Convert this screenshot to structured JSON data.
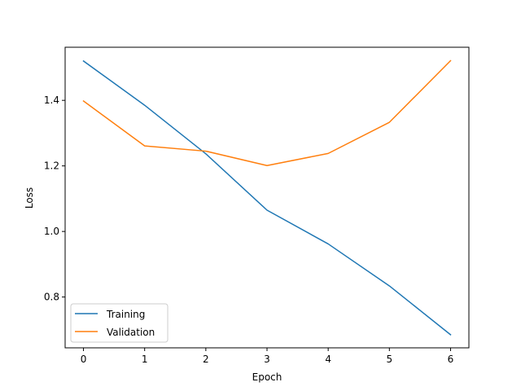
{
  "chart_data": {
    "type": "line",
    "title": "",
    "xlabel": "Epoch",
    "ylabel": "Loss",
    "x": [
      0,
      1,
      2,
      3,
      4,
      5,
      6
    ],
    "xticks": [
      "0",
      "1",
      "2",
      "3",
      "4",
      "5",
      "6"
    ],
    "yticks": [
      "0.8",
      "1.0",
      "1.2",
      "1.4"
    ],
    "ytick_values": [
      0.8,
      1.0,
      1.2,
      1.4
    ],
    "xlim": [
      -0.3,
      6.3
    ],
    "ylim": [
      0.645,
      1.562
    ],
    "grid": false,
    "legend_position": "lower-left",
    "series": [
      {
        "name": "Training",
        "color": "#1f77b4",
        "values": [
          1.52,
          1.385,
          1.237,
          1.065,
          0.962,
          0.834,
          0.685
        ]
      },
      {
        "name": "Validation",
        "color": "#ff7f0e",
        "values": [
          1.398,
          1.261,
          1.245,
          1.201,
          1.238,
          1.333,
          1.521
        ]
      }
    ]
  }
}
